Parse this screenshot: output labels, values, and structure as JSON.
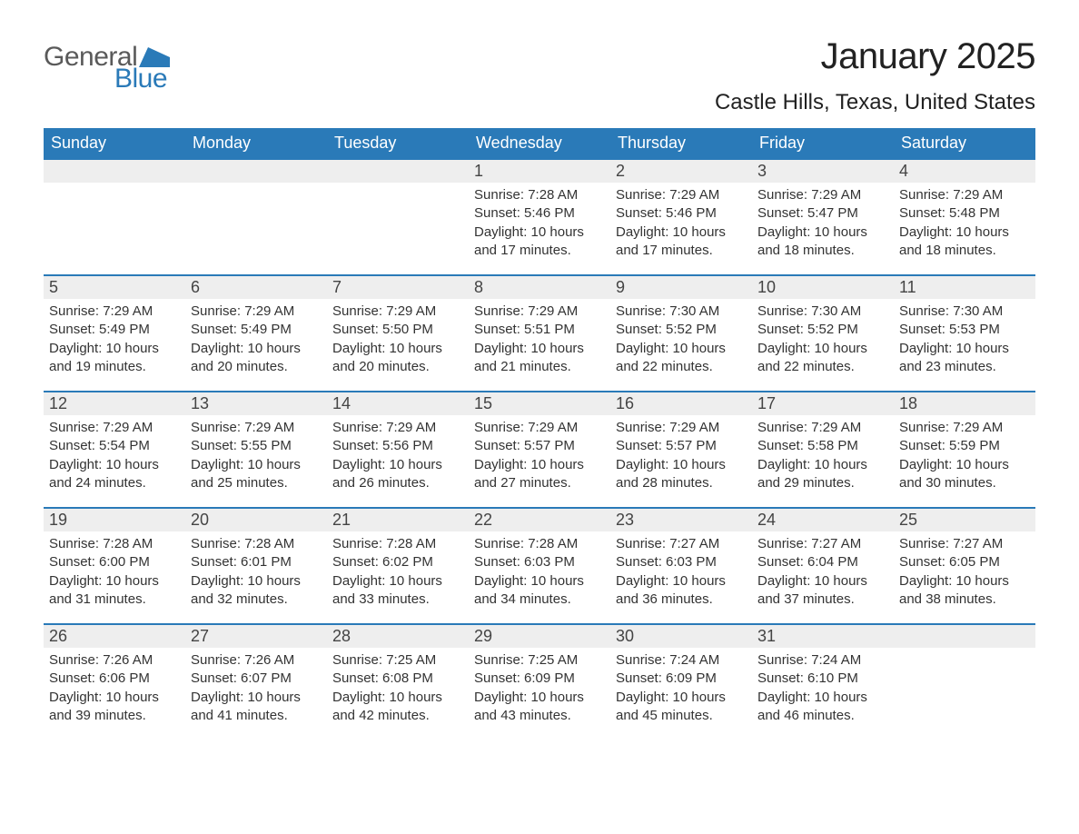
{
  "logo": {
    "text1": "General",
    "text2": "Blue",
    "icon_color": "#2a7ab8"
  },
  "title": "January 2025",
  "location": "Castle Hills, Texas, United States",
  "colors": {
    "header_bg": "#2a7ab8",
    "header_text": "#ffffff",
    "daynum_bg": "#eeeeee",
    "daynum_border": "#2a7ab8",
    "body_text": "#333333",
    "page_bg": "#ffffff"
  },
  "typography": {
    "title_fontsize": 40,
    "location_fontsize": 24,
    "dayheader_fontsize": 18,
    "daynum_fontsize": 18,
    "body_fontsize": 15
  },
  "weekdays": [
    "Sunday",
    "Monday",
    "Tuesday",
    "Wednesday",
    "Thursday",
    "Friday",
    "Saturday"
  ],
  "layout": {
    "columns": 7,
    "rows": 5,
    "leading_blanks": 3
  },
  "days": [
    {
      "n": 1,
      "sunrise": "7:28 AM",
      "sunset": "5:46 PM",
      "daylight": "10 hours and 17 minutes."
    },
    {
      "n": 2,
      "sunrise": "7:29 AM",
      "sunset": "5:46 PM",
      "daylight": "10 hours and 17 minutes."
    },
    {
      "n": 3,
      "sunrise": "7:29 AM",
      "sunset": "5:47 PM",
      "daylight": "10 hours and 18 minutes."
    },
    {
      "n": 4,
      "sunrise": "7:29 AM",
      "sunset": "5:48 PM",
      "daylight": "10 hours and 18 minutes."
    },
    {
      "n": 5,
      "sunrise": "7:29 AM",
      "sunset": "5:49 PM",
      "daylight": "10 hours and 19 minutes."
    },
    {
      "n": 6,
      "sunrise": "7:29 AM",
      "sunset": "5:49 PM",
      "daylight": "10 hours and 20 minutes."
    },
    {
      "n": 7,
      "sunrise": "7:29 AM",
      "sunset": "5:50 PM",
      "daylight": "10 hours and 20 minutes."
    },
    {
      "n": 8,
      "sunrise": "7:29 AM",
      "sunset": "5:51 PM",
      "daylight": "10 hours and 21 minutes."
    },
    {
      "n": 9,
      "sunrise": "7:30 AM",
      "sunset": "5:52 PM",
      "daylight": "10 hours and 22 minutes."
    },
    {
      "n": 10,
      "sunrise": "7:30 AM",
      "sunset": "5:52 PM",
      "daylight": "10 hours and 22 minutes."
    },
    {
      "n": 11,
      "sunrise": "7:30 AM",
      "sunset": "5:53 PM",
      "daylight": "10 hours and 23 minutes."
    },
    {
      "n": 12,
      "sunrise": "7:29 AM",
      "sunset": "5:54 PM",
      "daylight": "10 hours and 24 minutes."
    },
    {
      "n": 13,
      "sunrise": "7:29 AM",
      "sunset": "5:55 PM",
      "daylight": "10 hours and 25 minutes."
    },
    {
      "n": 14,
      "sunrise": "7:29 AM",
      "sunset": "5:56 PM",
      "daylight": "10 hours and 26 minutes."
    },
    {
      "n": 15,
      "sunrise": "7:29 AM",
      "sunset": "5:57 PM",
      "daylight": "10 hours and 27 minutes."
    },
    {
      "n": 16,
      "sunrise": "7:29 AM",
      "sunset": "5:57 PM",
      "daylight": "10 hours and 28 minutes."
    },
    {
      "n": 17,
      "sunrise": "7:29 AM",
      "sunset": "5:58 PM",
      "daylight": "10 hours and 29 minutes."
    },
    {
      "n": 18,
      "sunrise": "7:29 AM",
      "sunset": "5:59 PM",
      "daylight": "10 hours and 30 minutes."
    },
    {
      "n": 19,
      "sunrise": "7:28 AM",
      "sunset": "6:00 PM",
      "daylight": "10 hours and 31 minutes."
    },
    {
      "n": 20,
      "sunrise": "7:28 AM",
      "sunset": "6:01 PM",
      "daylight": "10 hours and 32 minutes."
    },
    {
      "n": 21,
      "sunrise": "7:28 AM",
      "sunset": "6:02 PM",
      "daylight": "10 hours and 33 minutes."
    },
    {
      "n": 22,
      "sunrise": "7:28 AM",
      "sunset": "6:03 PM",
      "daylight": "10 hours and 34 minutes."
    },
    {
      "n": 23,
      "sunrise": "7:27 AM",
      "sunset": "6:03 PM",
      "daylight": "10 hours and 36 minutes."
    },
    {
      "n": 24,
      "sunrise": "7:27 AM",
      "sunset": "6:04 PM",
      "daylight": "10 hours and 37 minutes."
    },
    {
      "n": 25,
      "sunrise": "7:27 AM",
      "sunset": "6:05 PM",
      "daylight": "10 hours and 38 minutes."
    },
    {
      "n": 26,
      "sunrise": "7:26 AM",
      "sunset": "6:06 PM",
      "daylight": "10 hours and 39 minutes."
    },
    {
      "n": 27,
      "sunrise": "7:26 AM",
      "sunset": "6:07 PM",
      "daylight": "10 hours and 41 minutes."
    },
    {
      "n": 28,
      "sunrise": "7:25 AM",
      "sunset": "6:08 PM",
      "daylight": "10 hours and 42 minutes."
    },
    {
      "n": 29,
      "sunrise": "7:25 AM",
      "sunset": "6:09 PM",
      "daylight": "10 hours and 43 minutes."
    },
    {
      "n": 30,
      "sunrise": "7:24 AM",
      "sunset": "6:09 PM",
      "daylight": "10 hours and 45 minutes."
    },
    {
      "n": 31,
      "sunrise": "7:24 AM",
      "sunset": "6:10 PM",
      "daylight": "10 hours and 46 minutes."
    }
  ],
  "labels": {
    "sunrise_prefix": "Sunrise: ",
    "sunset_prefix": "Sunset: ",
    "daylight_prefix": "Daylight: "
  }
}
